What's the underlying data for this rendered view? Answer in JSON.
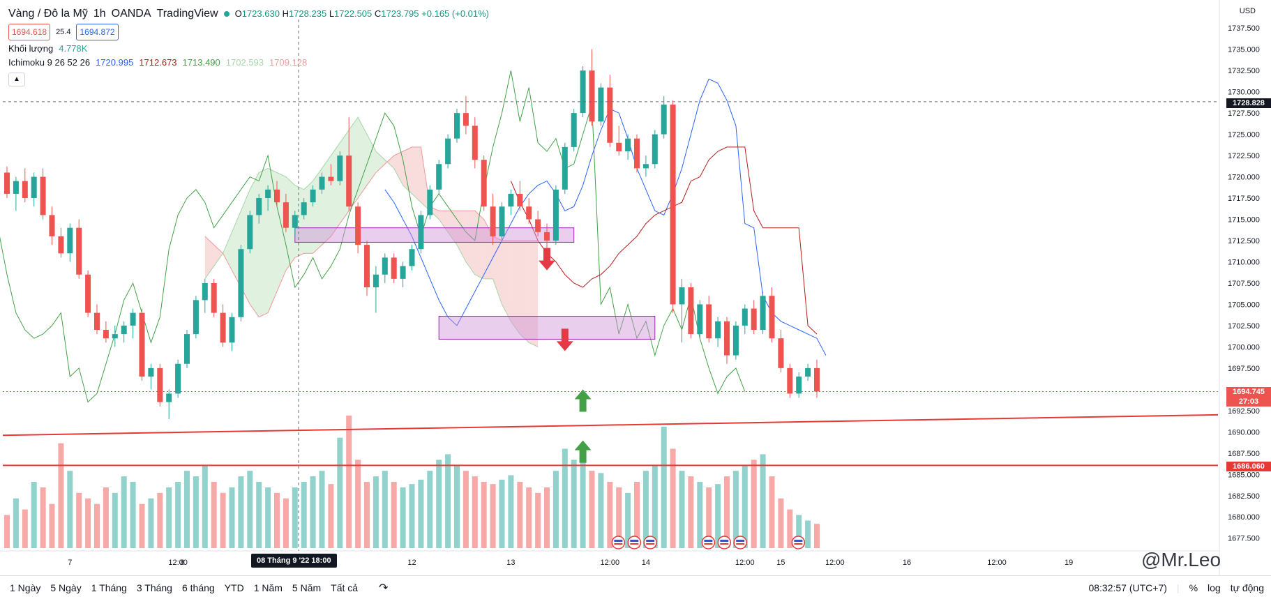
{
  "header": {
    "symbol": "Vàng / Đô la Mỹ",
    "interval": "1h",
    "broker": "OANDA",
    "platform": "TradingView",
    "ohlc": {
      "o_label": "O",
      "o": "1723.630",
      "h_label": "H",
      "h": "1728.235",
      "l_label": "L",
      "l": "1722.505",
      "c_label": "C",
      "c": "1723.795",
      "change": "+0.165 (+0.01%)"
    },
    "bid": "1694.618",
    "spread": "25.4",
    "ask": "1694.872",
    "volume_label": "Khối lượng",
    "volume_value": "4.778K",
    "ichimoku_label": "Ichimoku 9 26 52 26",
    "ichimoku_values": [
      "1720.995",
      "1712.673",
      "1713.490",
      "1702.593",
      "1709.128"
    ],
    "collapse_icon": "chevron-up-icon"
  },
  "price_axis": {
    "currency": "USD",
    "ticks": [
      "1737.500",
      "1735.000",
      "1732.500",
      "1730.000",
      "1727.500",
      "1725.000",
      "1722.500",
      "1720.000",
      "1717.500",
      "1715.000",
      "1712.500",
      "1710.000",
      "1707.500",
      "1705.000",
      "1702.500",
      "1700.000",
      "1697.500",
      "1695.000",
      "1692.500",
      "1690.000",
      "1687.500",
      "1685.000",
      "1682.500",
      "1680.000",
      "1677.500"
    ],
    "crosshair_price": "1728.828",
    "last_price": "1694.745",
    "countdown": "27:03",
    "line_price": "1686.060"
  },
  "time_axis": {
    "ticks": [
      "7",
      "12:00",
      "8",
      "12:00",
      "12",
      "13",
      "12:00",
      "14",
      "12:00",
      "15",
      "12:00",
      "16",
      "12:00",
      "19"
    ],
    "crosshair_time": "08 Tháng 9 '22   18:00"
  },
  "bottom_bar": {
    "ranges": [
      "1 Ngày",
      "5 Ngày",
      "1 Tháng",
      "3 Tháng",
      "6 tháng",
      "YTD",
      "1 Năm",
      "5 Năm",
      "Tất cả"
    ],
    "compare_icon": "replay-icon",
    "clock": "08:32:57 (UTC+7)",
    "percent": "%",
    "log": "log",
    "auto": "tự động"
  },
  "watermark": "@Mr.Leo",
  "colors": {
    "up": "#26a69a",
    "down": "#ef5350",
    "tenkan": "#2962ff",
    "kijun": "#b71c1c",
    "lagging": "#43a047",
    "cloud_bull": "#a5d6a7",
    "cloud_bear": "#ef9a9a",
    "zone": "#ce93d8",
    "hline": "#e53935",
    "arrow_down": "#e53945",
    "arrow_up": "#43a047"
  },
  "chart_data": {
    "type": "candlestick",
    "ylim": [
      1676.0,
      1738.5
    ],
    "candles": [
      [
        1720.5,
        1721.2,
        1717.5,
        1718.0
      ],
      [
        1718.0,
        1720.0,
        1716.0,
        1719.5
      ],
      [
        1719.5,
        1721.0,
        1717.0,
        1717.5
      ],
      [
        1717.5,
        1720.5,
        1716.5,
        1720.0
      ],
      [
        1720.0,
        1721.0,
        1715.0,
        1715.5
      ],
      [
        1715.5,
        1716.5,
        1712.0,
        1713.0
      ],
      [
        1713.0,
        1714.0,
        1710.5,
        1711.0
      ],
      [
        1711.0,
        1714.5,
        1710.0,
        1714.0
      ],
      [
        1714.0,
        1715.0,
        1708.0,
        1708.5
      ],
      [
        1708.5,
        1709.0,
        1703.5,
        1704.0
      ],
      [
        1704.0,
        1705.0,
        1701.5,
        1702.0
      ],
      [
        1702.0,
        1703.0,
        1700.5,
        1701.0
      ],
      [
        1701.0,
        1702.5,
        1700.0,
        1701.5
      ],
      [
        1701.5,
        1703.0,
        1700.5,
        1702.5
      ],
      [
        1702.5,
        1704.5,
        1701.0,
        1704.0
      ],
      [
        1704.0,
        1704.5,
        1696.0,
        1696.5
      ],
      [
        1696.5,
        1698.0,
        1695.0,
        1697.5
      ],
      [
        1697.5,
        1698.0,
        1693.0,
        1693.5
      ],
      [
        1693.5,
        1695.0,
        1691.5,
        1694.5
      ],
      [
        1694.5,
        1698.5,
        1694.0,
        1698.0
      ],
      [
        1698.0,
        1702.0,
        1697.5,
        1701.5
      ],
      [
        1701.5,
        1706.0,
        1701.0,
        1705.5
      ],
      [
        1705.5,
        1708.0,
        1704.0,
        1707.5
      ],
      [
        1707.5,
        1708.0,
        1703.5,
        1704.0
      ],
      [
        1704.0,
        1705.0,
        1700.0,
        1700.5
      ],
      [
        1700.5,
        1704.0,
        1699.5,
        1703.5
      ],
      [
        1703.5,
        1712.0,
        1703.0,
        1711.5
      ],
      [
        1711.5,
        1716.0,
        1711.0,
        1715.5
      ],
      [
        1715.5,
        1718.0,
        1714.5,
        1717.5
      ],
      [
        1717.5,
        1719.0,
        1716.0,
        1718.5
      ],
      [
        1718.5,
        1719.5,
        1716.5,
        1717.0
      ],
      [
        1717.0,
        1718.0,
        1713.5,
        1714.0
      ],
      [
        1714.0,
        1716.0,
        1713.0,
        1715.5
      ],
      [
        1715.5,
        1717.5,
        1715.0,
        1717.0
      ],
      [
        1717.0,
        1719.0,
        1716.5,
        1718.5
      ],
      [
        1718.5,
        1720.5,
        1718.0,
        1720.0
      ],
      [
        1720.0,
        1721.5,
        1719.0,
        1719.5
      ],
      [
        1719.5,
        1723.0,
        1719.0,
        1722.5
      ],
      [
        1722.5,
        1727.0,
        1716.0,
        1716.5
      ],
      [
        1716.5,
        1717.0,
        1711.0,
        1712.0
      ],
      [
        1712.0,
        1712.5,
        1706.0,
        1707.0
      ],
      [
        1707.0,
        1709.5,
        1704.0,
        1708.5
      ],
      [
        1708.5,
        1711.0,
        1707.5,
        1710.5
      ],
      [
        1710.5,
        1711.0,
        1707.5,
        1708.0
      ],
      [
        1708.0,
        1710.0,
        1707.0,
        1709.5
      ],
      [
        1709.5,
        1712.0,
        1709.0,
        1711.5
      ],
      [
        1711.5,
        1716.0,
        1711.0,
        1715.5
      ],
      [
        1715.5,
        1719.0,
        1715.0,
        1718.5
      ],
      [
        1718.5,
        1722.0,
        1718.0,
        1721.5
      ],
      [
        1721.5,
        1725.0,
        1721.0,
        1724.5
      ],
      [
        1724.5,
        1728.0,
        1724.0,
        1727.5
      ],
      [
        1727.5,
        1729.5,
        1725.0,
        1726.0
      ],
      [
        1726.0,
        1727.0,
        1721.0,
        1722.0
      ],
      [
        1722.0,
        1722.5,
        1716.0,
        1716.5
      ],
      [
        1716.5,
        1718.0,
        1712.0,
        1713.0
      ],
      [
        1713.0,
        1717.0,
        1712.5,
        1716.5
      ],
      [
        1716.5,
        1718.5,
        1715.5,
        1718.0
      ],
      [
        1718.0,
        1719.5,
        1716.0,
        1716.5
      ],
      [
        1716.5,
        1717.5,
        1714.5,
        1715.0
      ],
      [
        1715.0,
        1716.0,
        1713.0,
        1713.5
      ],
      [
        1713.5,
        1714.5,
        1711.5,
        1712.5
      ],
      [
        1712.5,
        1719.0,
        1712.0,
        1718.5
      ],
      [
        1718.5,
        1724.0,
        1718.0,
        1723.5
      ],
      [
        1723.5,
        1728.0,
        1723.0,
        1727.5
      ],
      [
        1727.5,
        1733.0,
        1727.0,
        1732.5
      ],
      [
        1732.5,
        1735.0,
        1726.0,
        1726.5
      ],
      [
        1726.5,
        1731.0,
        1726.0,
        1730.5
      ],
      [
        1730.5,
        1732.0,
        1723.5,
        1724.0
      ],
      [
        1724.0,
        1726.0,
        1722.5,
        1723.0
      ],
      [
        1723.0,
        1725.0,
        1722.0,
        1724.5
      ],
      [
        1724.5,
        1725.0,
        1720.5,
        1721.0
      ],
      [
        1721.0,
        1722.5,
        1720.0,
        1721.5
      ],
      [
        1721.5,
        1725.5,
        1721.0,
        1725.0
      ],
      [
        1725.0,
        1729.5,
        1724.5,
        1728.5
      ],
      [
        1728.5,
        1729.0,
        1704.0,
        1705.0
      ],
      [
        1705.0,
        1708.0,
        1700.5,
        1707.0
      ],
      [
        1707.0,
        1707.5,
        1701.0,
        1701.5
      ],
      [
        1701.5,
        1705.5,
        1701.0,
        1705.0
      ],
      [
        1705.0,
        1706.0,
        1700.5,
        1701.0
      ],
      [
        1701.0,
        1703.5,
        1700.0,
        1703.0
      ],
      [
        1703.0,
        1703.5,
        1698.0,
        1699.0
      ],
      [
        1699.0,
        1703.0,
        1698.5,
        1702.5
      ],
      [
        1702.5,
        1705.0,
        1701.5,
        1704.5
      ],
      [
        1704.5,
        1705.5,
        1701.5,
        1702.0
      ],
      [
        1702.0,
        1706.5,
        1701.5,
        1706.0
      ],
      [
        1706.0,
        1707.0,
        1700.5,
        1701.0
      ],
      [
        1701.0,
        1702.0,
        1697.0,
        1697.5
      ],
      [
        1697.5,
        1698.0,
        1694.0,
        1694.5
      ],
      [
        1694.5,
        1697.0,
        1694.0,
        1696.5
      ],
      [
        1696.5,
        1698.0,
        1696.0,
        1697.5
      ],
      [
        1697.5,
        1698.5,
        1694.0,
        1694.745
      ]
    ],
    "volumes": [
      30,
      45,
      35,
      60,
      55,
      40,
      95,
      70,
      50,
      45,
      40,
      55,
      50,
      65,
      60,
      40,
      45,
      50,
      55,
      60,
      70,
      65,
      75,
      60,
      50,
      55,
      65,
      70,
      60,
      55,
      50,
      45,
      55,
      60,
      65,
      70,
      58,
      100,
      120,
      80,
      60,
      65,
      70,
      60,
      55,
      58,
      62,
      70,
      80,
      85,
      75,
      70,
      65,
      60,
      58,
      62,
      66,
      60,
      55,
      50,
      55,
      70,
      90,
      80,
      85,
      70,
      68,
      60,
      55,
      50,
      60,
      70,
      75,
      110,
      90,
      70,
      65,
      60,
      55,
      58,
      65,
      70,
      75,
      80,
      85,
      65,
      45,
      35,
      30,
      25,
      22
    ],
    "tenkan": [
      1718.5,
      1717.0,
      1715.0,
      1713.0,
      1710.5,
      1708.0,
      1705.5,
      1703.5,
      1702.5,
      1704.5,
      1706.5,
      1708.5,
      1710.5,
      1712.5,
      1714.5,
      1716.5,
      1718.0,
      1719.0,
      1719.5,
      1718.0,
      1716.0,
      1716.5,
      1719.0,
      1722.5,
      1725.5,
      1728.0,
      1727.5,
      1724.5,
      1721.0,
      1718.5,
      1716.0,
      1715.5,
      1718.0,
      1721.0,
      1725.0,
      1729.0,
      1731.5,
      1731.0,
      1729.0,
      1726.0,
      1714.5,
      1714.0,
      1706.0,
      1704.0,
      1703.0,
      1702.5,
      1702.0,
      1701.5,
      1701.0,
      1699.0
    ],
    "kijun": [
      1719.5,
      1717.0,
      1715.0,
      1712.5,
      1711.0,
      1710.0,
      1708.5,
      1707.5,
      1707.0,
      1708.0,
      1708.5,
      1709.5,
      1711.0,
      1712.0,
      1713.0,
      1714.5,
      1715.5,
      1716.0,
      1716.5,
      1717.0,
      1719.5,
      1720.0,
      1722.0,
      1723.0,
      1723.5,
      1723.5,
      1723.5,
      1716.0,
      1714.0,
      1714.0,
      1714.0,
      1714.0,
      1714.0,
      1702.5,
      1701.5
    ],
    "span_a": [
      1708.0,
      1709.5,
      1711.0,
      1713.5,
      1716.0,
      1718.5,
      1720.5,
      1721.0,
      1720.5,
      1720.0,
      1719.0,
      1718.5,
      1719.5,
      1721.0,
      1722.5,
      1724.0,
      1725.5,
      1727.0,
      1725.0,
      1723.0,
      1722.0,
      1721.0,
      1719.0,
      1718.0,
      1717.0,
      1716.0,
      1715.0,
      1713.5,
      1712.0,
      1710.0,
      1708.5,
      1708.0,
      1708.0,
      1705.0,
      1703.0,
      1701.5,
      1700.5,
      1700.0
    ],
    "span_b": [
      1713.0,
      1712.0,
      1711.0,
      1709.0,
      1707.0,
      1705.0,
      1703.5,
      1704.0,
      1706.5,
      1709.0,
      1710.5,
      1711.0,
      1711.0,
      1712.0,
      1713.0,
      1714.5,
      1716.0,
      1717.5,
      1719.0,
      1720.5,
      1721.5,
      1722.5,
      1723.0,
      1723.5,
      1723.5,
      1716.5,
      1716.0,
      1716.0,
      1716.0,
      1716.0,
      1716.0,
      1715.0,
      1713.0,
      1712.5,
      1712.5,
      1712.5,
      1712.5,
      1712.5
    ]
  },
  "drawings": {
    "zones": [
      {
        "t0": 32,
        "t1": 63,
        "p_hi": 1714.0,
        "p_lo": 1712.3
      },
      {
        "t0": 48,
        "t1": 72,
        "p_hi": 1703.6,
        "p_lo": 1700.9
      }
    ],
    "trendline": {
      "t0": 0,
      "p0": 1689.6,
      "t1": 86,
      "p1": 1692.0
    },
    "hline": 1686.06,
    "arrows_down": [
      {
        "t": 60,
        "p": 1709.5
      },
      {
        "t": 62,
        "p": 1700.0
      }
    ],
    "arrows_up": [
      {
        "t": 64,
        "p": 1694.5
      },
      {
        "t": 64,
        "p": 1688.5
      }
    ],
    "event_badges": {
      "groups": [
        [
          66,
          67,
          68
        ],
        [
          76,
          77,
          78
        ],
        [
          86
        ]
      ],
      "icon": "us-flag-icon"
    }
  }
}
